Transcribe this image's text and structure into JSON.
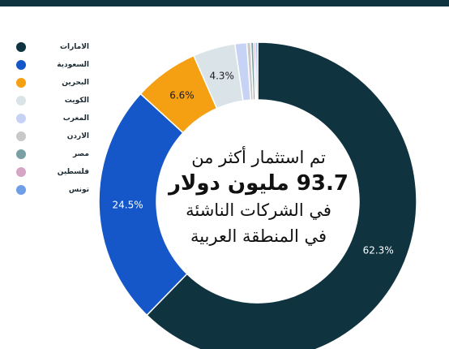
{
  "header": {
    "bar_color": "#0f3440"
  },
  "chart_data": {
    "type": "pie",
    "style": "donut",
    "title": "",
    "categories": [
      "الامارات",
      "السعودية",
      "البحرين",
      "الكويت",
      "المغرب",
      "الاردن",
      "مصر",
      "فلسطين",
      "تونس"
    ],
    "values": [
      62.3,
      24.5,
      6.6,
      4.3,
      1.2,
      0.4,
      0.3,
      0.2,
      0.2
    ],
    "labels": [
      "62.3%",
      "24.5%",
      "6.6%",
      "4.3%",
      "",
      "",
      "",
      "",
      ""
    ],
    "colors": [
      "#0f3440",
      "#1557c8",
      "#f59f12",
      "#d9e3e8",
      "#c7d3f5",
      "#c8c8c8",
      "#7aa0a6",
      "#d4a5c4",
      "#6f9de8"
    ],
    "legend_position": "left"
  },
  "center": {
    "line1": "تم استثمار أكثر من",
    "line2": "93.7 مليون دولار",
    "line3": "في الشركات الناشئة",
    "line4": "في المنطقة العربية"
  }
}
